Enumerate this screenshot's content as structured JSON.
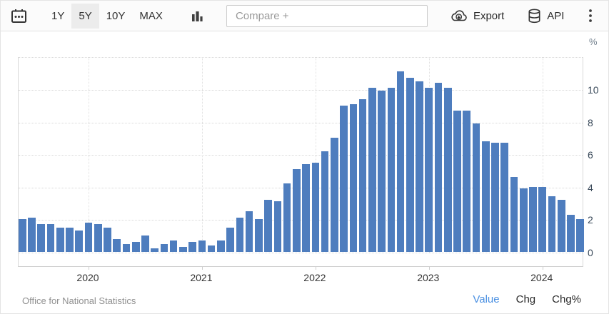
{
  "toolbar": {
    "range_buttons": [
      {
        "label": "1Y",
        "selected": false
      },
      {
        "label": "5Y",
        "selected": true
      },
      {
        "label": "10Y",
        "selected": false
      },
      {
        "label": "MAX",
        "selected": false
      }
    ],
    "compare_placeholder": "Compare +",
    "export_label": "Export",
    "api_label": "API"
  },
  "chart_data": {
    "type": "bar",
    "title": "",
    "unit": "%",
    "y_axis_label": "%",
    "x": [
      "2019-06",
      "2019-07",
      "2019-08",
      "2019-09",
      "2019-10",
      "2019-11",
      "2019-12",
      "2020-01",
      "2020-02",
      "2020-03",
      "2020-04",
      "2020-05",
      "2020-06",
      "2020-07",
      "2020-08",
      "2020-09",
      "2020-10",
      "2020-11",
      "2020-12",
      "2021-01",
      "2021-02",
      "2021-03",
      "2021-04",
      "2021-05",
      "2021-06",
      "2021-07",
      "2021-08",
      "2021-09",
      "2021-10",
      "2021-11",
      "2021-12",
      "2022-01",
      "2022-02",
      "2022-03",
      "2022-04",
      "2022-05",
      "2022-06",
      "2022-07",
      "2022-08",
      "2022-09",
      "2022-10",
      "2022-11",
      "2022-12",
      "2023-01",
      "2023-02",
      "2023-03",
      "2023-04",
      "2023-05",
      "2023-06",
      "2023-07",
      "2023-08",
      "2023-09",
      "2023-10",
      "2023-11",
      "2023-12",
      "2024-01",
      "2024-02",
      "2024-03",
      "2024-04",
      "2024-05"
    ],
    "values": [
      2.0,
      2.1,
      1.7,
      1.7,
      1.5,
      1.5,
      1.3,
      1.8,
      1.7,
      1.5,
      0.8,
      0.5,
      0.6,
      1.0,
      0.2,
      0.5,
      0.7,
      0.3,
      0.6,
      0.7,
      0.4,
      0.7,
      1.5,
      2.1,
      2.5,
      2.0,
      3.2,
      3.1,
      4.2,
      5.1,
      5.4,
      5.5,
      6.2,
      7.0,
      9.0,
      9.1,
      9.4,
      10.1,
      9.9,
      10.1,
      11.1,
      10.7,
      10.5,
      10.1,
      10.4,
      10.1,
      8.7,
      8.7,
      7.9,
      6.8,
      6.7,
      6.7,
      4.6,
      3.9,
      4.0,
      4.0,
      3.4,
      3.2,
      2.3,
      2.0
    ],
    "y_ticks": [
      0,
      2,
      4,
      6,
      8,
      10
    ],
    "y_gridlines": [
      0,
      2,
      4,
      6,
      8,
      10,
      12
    ],
    "ylim": [
      -1,
      12
    ],
    "x_tick_years": [
      "2020",
      "2021",
      "2022",
      "2023",
      "2024"
    ],
    "legend": "none",
    "grid": "dotted horizontal every 2 units, dotted vertical at year starts"
  },
  "footer": {
    "source": "Office for National Statistics",
    "modes": [
      {
        "label": "Value",
        "active": true
      },
      {
        "label": "Chg",
        "active": false
      },
      {
        "label": "Chg%",
        "active": false
      }
    ]
  },
  "colors": {
    "bar": "#4e7dbe",
    "active_link": "#4a90e2",
    "selected_range_bg": "#ececec",
    "toolbar_text": "#333333",
    "axis_label": "#3a4a5a",
    "source_text": "#909090"
  }
}
